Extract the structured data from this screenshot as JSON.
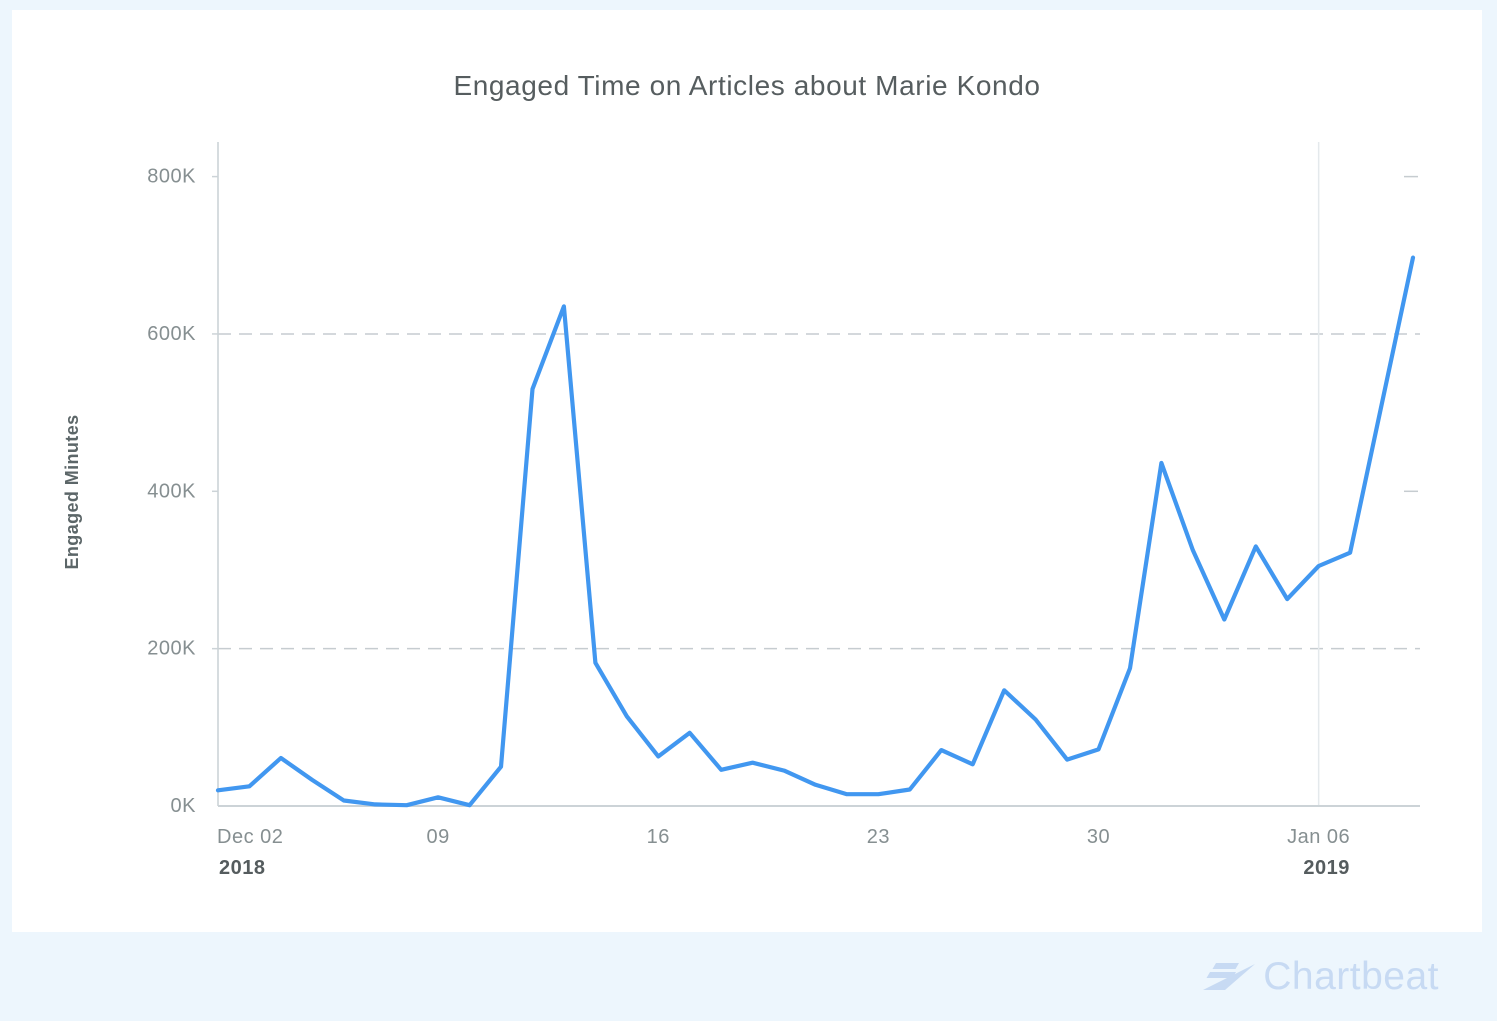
{
  "chart": {
    "title": "Engaged Time on Articles about Marie Kondo",
    "y_axis_title": "Engaged Minutes"
  },
  "footer": {
    "brand": "Chartbeat"
  },
  "colors": {
    "line": "#4197f0",
    "axis": "#ccd3d7",
    "grid": "#c6ccd0",
    "year_line": "#e4e9ec",
    "title": "#565d5f",
    "tick_label": "#868f91",
    "tick_label_bold": "#555c5e",
    "y_axis_title": "#5c6668",
    "page_bg": "#edf6fd",
    "card_bg": "#ffffff",
    "logo": "#c7daf3"
  },
  "chart_data": {
    "type": "line",
    "title": "Engaged Time on Articles about Marie Kondo",
    "xlabel": "",
    "ylabel": "Engaged Minutes",
    "ylim": [
      0,
      800000
    ],
    "grid": "dashed horizontal at 200K and 600K, short dash stubs at 400K and 800K near right edge",
    "legend": "none",
    "year_separator_index": 35,
    "x": [
      "Dec 02",
      "Dec 03",
      "Dec 04",
      "Dec 05",
      "Dec 06",
      "Dec 07",
      "Dec 08",
      "Dec 09",
      "Dec 10",
      "Dec 11",
      "Dec 12",
      "Dec 13",
      "Dec 14",
      "Dec 15",
      "Dec 16",
      "Dec 17",
      "Dec 18",
      "Dec 19",
      "Dec 20",
      "Dec 21",
      "Dec 22",
      "Dec 23",
      "Dec 24",
      "Dec 25",
      "Dec 26",
      "Dec 27",
      "Dec 28",
      "Dec 29",
      "Dec 30",
      "Dec 31",
      "Jan 01",
      "Jan 02",
      "Jan 03",
      "Jan 04",
      "Jan 05",
      "Jan 06",
      "Jan 07",
      "Jan 08",
      "Jan 09"
    ],
    "series": [
      {
        "name": "Engaged Minutes",
        "values": [
          20000,
          25000,
          61000,
          33000,
          7000,
          2000,
          1000,
          11000,
          1000,
          50000,
          530000,
          635000,
          182000,
          114000,
          63000,
          93000,
          46000,
          55000,
          45000,
          27000,
          15000,
          15000,
          21000,
          71000,
          53000,
          147000,
          110000,
          59000,
          72000,
          175000,
          436000,
          325000,
          237000,
          330000,
          263000,
          305000,
          322000,
          510000,
          697000
        ]
      }
    ],
    "x_ticks": [
      {
        "index": 0,
        "label": "Dec 02",
        "year": "2018"
      },
      {
        "index": 7,
        "label": "09"
      },
      {
        "index": 14,
        "label": "16"
      },
      {
        "index": 21,
        "label": "23"
      },
      {
        "index": 28,
        "label": "30"
      },
      {
        "index": 35,
        "label": "Jan 06",
        "year": "2019"
      }
    ],
    "y_ticks": [
      {
        "value": 0,
        "label": "0K"
      },
      {
        "value": 200000,
        "label": "200K"
      },
      {
        "value": 400000,
        "label": "400K"
      },
      {
        "value": 600000,
        "label": "600K"
      },
      {
        "value": 800000,
        "label": "800K"
      }
    ],
    "full_gridlines_at": [
      200000,
      600000
    ],
    "stub_gridlines_at": [
      400000,
      800000
    ]
  }
}
